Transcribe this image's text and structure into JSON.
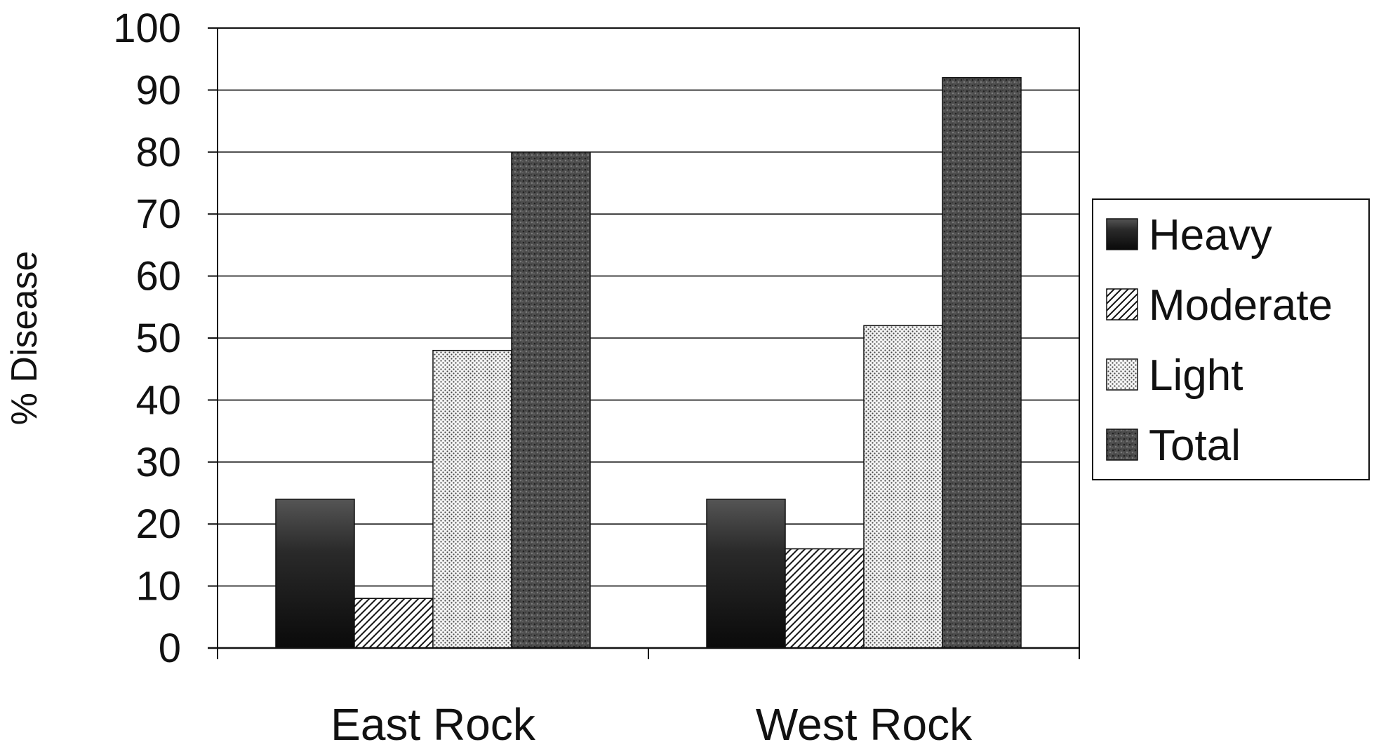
{
  "chart_data": {
    "type": "bar",
    "title": "",
    "xlabel": "",
    "ylabel": "% Disease",
    "categories": [
      "East Rock",
      "West Rock"
    ],
    "yticks": [
      "0",
      "10",
      "20",
      "30",
      "40",
      "50",
      "60",
      "70",
      "80",
      "90",
      "100"
    ],
    "ylim": [
      0,
      100
    ],
    "grid": true,
    "legend_position": "right",
    "series": [
      {
        "name": "Heavy",
        "values": [
          24,
          24
        ],
        "pattern": "dark-gradient"
      },
      {
        "name": "Moderate",
        "values": [
          8,
          16
        ],
        "pattern": "diagonal-hatch"
      },
      {
        "name": "Light",
        "values": [
          48,
          52
        ],
        "pattern": "fine-dots"
      },
      {
        "name": "Total",
        "values": [
          80,
          92
        ],
        "pattern": "dark-speckle"
      }
    ],
    "colors": {
      "heavy": "#1a1a1a",
      "total": "#4a4a4a",
      "light_bg": "#f2f2f2",
      "axis": "#111111"
    }
  }
}
